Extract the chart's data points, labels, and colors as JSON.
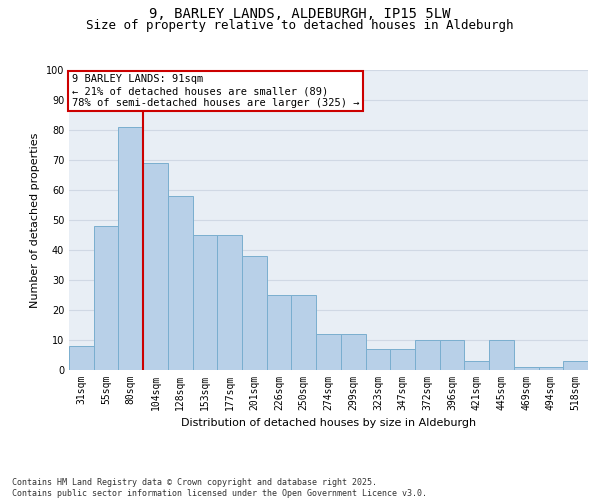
{
  "title_line1": "9, BARLEY LANDS, ALDEBURGH, IP15 5LW",
  "title_line2": "Size of property relative to detached houses in Aldeburgh",
  "xlabel": "Distribution of detached houses by size in Aldeburgh",
  "ylabel": "Number of detached properties",
  "categories": [
    "31sqm",
    "55sqm",
    "80sqm",
    "104sqm",
    "128sqm",
    "153sqm",
    "177sqm",
    "201sqm",
    "226sqm",
    "250sqm",
    "274sqm",
    "299sqm",
    "323sqm",
    "347sqm",
    "372sqm",
    "396sqm",
    "421sqm",
    "445sqm",
    "469sqm",
    "494sqm",
    "518sqm"
  ],
  "values": [
    8,
    48,
    81,
    69,
    58,
    45,
    45,
    38,
    25,
    25,
    12,
    12,
    7,
    7,
    10,
    10,
    3,
    10,
    1,
    1,
    3
  ],
  "bar_color": "#b8d0e8",
  "bar_edge_color": "#7aaecf",
  "bar_edge_width": 0.7,
  "vline_color": "#cc0000",
  "annotation_text": "9 BARLEY LANDS: 91sqm\n← 21% of detached houses are smaller (89)\n78% of semi-detached houses are larger (325) →",
  "annotation_box_color": "#cc0000",
  "grid_color": "#d0d8e4",
  "bg_color": "#e8eef5",
  "ylim": [
    0,
    100
  ],
  "yticks": [
    0,
    10,
    20,
    30,
    40,
    50,
    60,
    70,
    80,
    90,
    100
  ],
  "footnote": "Contains HM Land Registry data © Crown copyright and database right 2025.\nContains public sector information licensed under the Open Government Licence v3.0.",
  "title_fontsize": 10,
  "subtitle_fontsize": 9,
  "label_fontsize": 8,
  "tick_fontsize": 7,
  "annot_fontsize": 7.5,
  "footnote_fontsize": 6
}
